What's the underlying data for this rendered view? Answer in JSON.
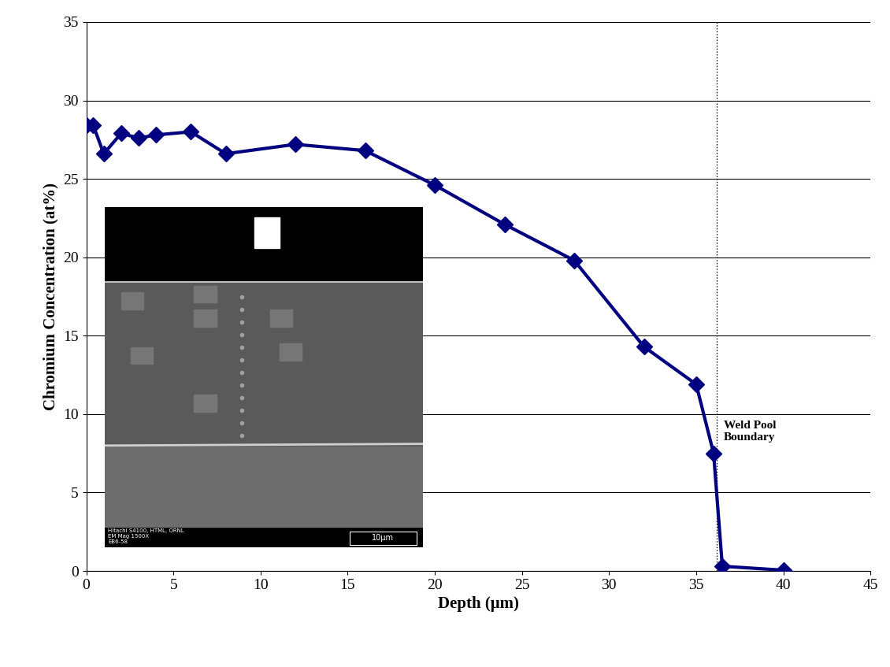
{
  "chart_data": {
    "type": "line",
    "xlabel": "Depth (μm)",
    "ylabel": "Chromium Concentration (at%)",
    "x": [
      0,
      0.4,
      1,
      2,
      3,
      4,
      6,
      8,
      12,
      16,
      20,
      24,
      28,
      32,
      35,
      36,
      36.5,
      40
    ],
    "values": [
      28.4,
      28.4,
      26.6,
      27.9,
      27.6,
      27.8,
      28.0,
      26.6,
      27.2,
      26.8,
      24.6,
      22.1,
      19.8,
      14.3,
      11.9,
      7.5,
      0.3,
      0.05
    ],
    "color": "#000080",
    "marker": "D",
    "line_style": "solid",
    "xlim": [
      0,
      45
    ],
    "xticks": [
      0,
      5,
      10,
      15,
      20,
      25,
      30,
      35,
      40,
      45
    ],
    "ylim": [
      0,
      35
    ],
    "yticks": [
      0,
      5,
      10,
      15,
      20,
      25,
      30,
      35
    ],
    "grid": "y",
    "boundary": 36.2,
    "annotations": [
      "Weld Pool\nBoundary"
    ],
    "inset": {
      "texts": [
        "Hitachi S4100, HTML, ORNL",
        "EM Mag 1500X",
        "EB6-58"
      ],
      "scale_bar": "10μm"
    }
  }
}
